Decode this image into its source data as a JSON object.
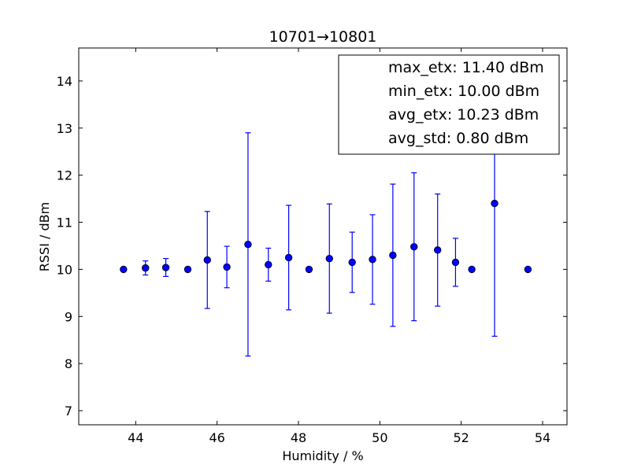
{
  "chart_data": {
    "type": "scatter",
    "title": "10701→10801",
    "xlabel": "Humidity / %",
    "ylabel": "RSSI / dBm",
    "xlim": [
      42.6,
      54.6
    ],
    "ylim": [
      6.7,
      14.7
    ],
    "x_ticks": [
      44,
      46,
      48,
      50,
      52,
      54
    ],
    "y_ticks": [
      7,
      8,
      9,
      10,
      11,
      12,
      13,
      14
    ],
    "grid": false,
    "legend_position": "top-right",
    "legend_entries": [
      "max_etx: 11.40 dBm",
      "min_etx: 10.00 dBm",
      "avg_etx: 10.23 dBm",
      "avg_std: 0.80 dBm"
    ],
    "marker_color": "#0000ff",
    "points": [
      {
        "x": 43.7,
        "y": 10.0,
        "err": 0.0
      },
      {
        "x": 44.24,
        "y": 10.03,
        "err": 0.15
      },
      {
        "x": 44.74,
        "y": 10.04,
        "err": 0.19
      },
      {
        "x": 45.28,
        "y": 10.0,
        "err": 0.0
      },
      {
        "x": 45.76,
        "y": 10.2,
        "err": 1.03
      },
      {
        "x": 46.24,
        "y": 10.05,
        "err": 0.44
      },
      {
        "x": 46.76,
        "y": 10.53,
        "err": 2.37
      },
      {
        "x": 47.26,
        "y": 10.1,
        "err": 0.35
      },
      {
        "x": 47.76,
        "y": 10.25,
        "err": 1.11
      },
      {
        "x": 48.26,
        "y": 10.0,
        "err": 0.0
      },
      {
        "x": 48.76,
        "y": 10.23,
        "err": 1.16
      },
      {
        "x": 49.32,
        "y": 10.15,
        "err": 0.64
      },
      {
        "x": 49.82,
        "y": 10.21,
        "err": 0.95
      },
      {
        "x": 50.32,
        "y": 10.3,
        "err": 1.51
      },
      {
        "x": 50.84,
        "y": 10.48,
        "err": 1.57
      },
      {
        "x": 51.42,
        "y": 10.41,
        "err": 1.19
      },
      {
        "x": 51.86,
        "y": 10.15,
        "err": 0.51
      },
      {
        "x": 52.26,
        "y": 10.0,
        "err": 0.0
      },
      {
        "x": 52.82,
        "y": 11.4,
        "err": 2.82
      },
      {
        "x": 53.64,
        "y": 10.0,
        "err": 0.0
      }
    ]
  }
}
